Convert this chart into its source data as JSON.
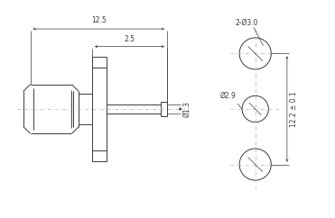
{
  "bg_color": "#ffffff",
  "line_color": "#3a3a3a",
  "dim_color": "#3a3a3a",
  "centerline_color": "#aaaaaa",
  "annotations": {
    "dim_125_text": "12.5",
    "dim_25_text": "2.5",
    "dim_13_text": "Ø1.3",
    "dim_29_text": "Ø2.9",
    "dim_30_text": "2-Ø3.0",
    "dim_122_text": "12.2 ± 0.1",
    "fontsize": 5.5
  }
}
